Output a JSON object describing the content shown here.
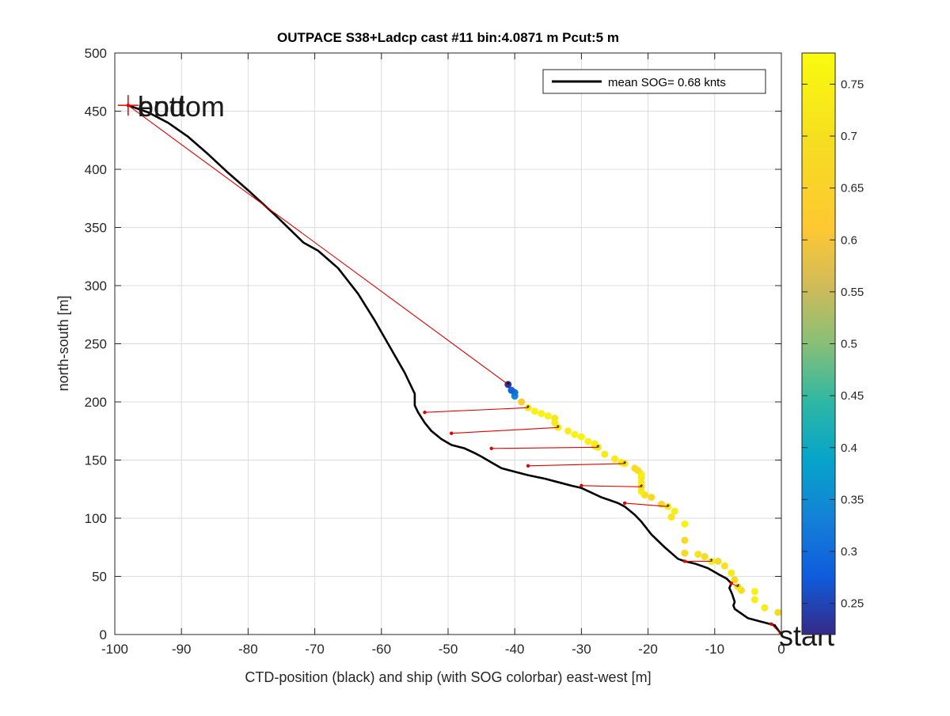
{
  "chart_data": {
    "type": "scatter",
    "title": "OUTPACE S38+Ladcp cast #11 bin:4.0871 m  Pcut:5 m",
    "xlabel": "CTD-position (black) and ship (with SOG colorbar) east-west [m]",
    "ylabel": "north-south [m]",
    "xlim": [
      -100,
      0
    ],
    "ylim": [
      0,
      500
    ],
    "xticks": [
      "-100",
      "-90",
      "-80",
      "-70",
      "-60",
      "-50",
      "-40",
      "-30",
      "-20",
      "-10",
      "0"
    ],
    "yticks": [
      "0",
      "50",
      "100",
      "150",
      "200",
      "250",
      "300",
      "350",
      "400",
      "450",
      "500"
    ],
    "grid": true,
    "legend": {
      "position": "top-right",
      "entries": [
        "mean SOG=  0.68 knts"
      ]
    },
    "annotations": [
      {
        "text": "bottom",
        "x": -98,
        "y": 455
      },
      {
        "text": "end",
        "x": -98,
        "y": 455
      },
      {
        "text": "start",
        "x": 0,
        "y": 0
      }
    ],
    "colorbar": {
      "range": [
        0.22,
        0.78
      ],
      "ticks": [
        "0.25",
        "0.3",
        "0.35",
        "0.4",
        "0.45",
        "0.5",
        "0.55",
        "0.6",
        "0.65",
        "0.7",
        "0.75"
      ]
    },
    "series": [
      {
        "name": "mean SOG=  0.68 knts",
        "kind": "line",
        "color": "#000000",
        "points": [
          [
            0,
            0
          ],
          [
            -1,
            8
          ],
          [
            -3,
            11
          ],
          [
            -5,
            14
          ],
          [
            -6,
            18
          ],
          [
            -7,
            22
          ],
          [
            -7.2,
            25
          ],
          [
            -7,
            28
          ],
          [
            -7.4,
            35
          ],
          [
            -7.8,
            40
          ],
          [
            -7.5,
            44
          ],
          [
            -8.2,
            48
          ],
          [
            -9.5,
            52
          ],
          [
            -11,
            57
          ],
          [
            -13,
            61
          ],
          [
            -14.5,
            63
          ],
          [
            -15.5,
            65
          ],
          [
            -17.5,
            75
          ],
          [
            -19.5,
            86
          ],
          [
            -21,
            97
          ],
          [
            -22,
            103
          ],
          [
            -23.5,
            110
          ],
          [
            -24.5,
            113
          ],
          [
            -27,
            118
          ],
          [
            -28.5,
            122
          ],
          [
            -30,
            126
          ],
          [
            -31.5,
            128
          ],
          [
            -33.5,
            131
          ],
          [
            -35.5,
            134
          ],
          [
            -38,
            137
          ],
          [
            -40,
            140
          ],
          [
            -42,
            143
          ],
          [
            -43.5,
            148
          ],
          [
            -45,
            153
          ],
          [
            -46,
            156
          ],
          [
            -47.5,
            160
          ],
          [
            -49.5,
            163
          ],
          [
            -51,
            168
          ],
          [
            -52.5,
            175
          ],
          [
            -53.5,
            182
          ],
          [
            -54.5,
            191
          ],
          [
            -55,
            197
          ],
          [
            -55,
            207
          ],
          [
            -56.5,
            225
          ],
          [
            -58.5,
            245
          ],
          [
            -61,
            270
          ],
          [
            -63.5,
            293
          ],
          [
            -66.5,
            315
          ],
          [
            -69.5,
            330
          ],
          [
            -71.7,
            337
          ],
          [
            -76,
            361
          ],
          [
            -80,
            382
          ],
          [
            -83,
            397
          ],
          [
            -86,
            413
          ],
          [
            -89,
            428
          ],
          [
            -92,
            440
          ],
          [
            -95,
            449
          ],
          [
            -98,
            455
          ]
        ]
      },
      {
        "name": "",
        "kind": "segments",
        "color": "#e00000",
        "segments": [
          [
            [
              0,
              0
            ],
            [
              -1.5,
              9
            ]
          ],
          [
            [
              -6.5,
              41
            ],
            [
              -7.5,
              44
            ]
          ],
          [
            [
              -10.5,
              63
            ],
            [
              -14.5,
              63
            ]
          ],
          [
            [
              -17,
              110
            ],
            [
              -23.5,
              113
            ]
          ],
          [
            [
              -21,
              127
            ],
            [
              -30,
              128
            ]
          ],
          [
            [
              -23.5,
              147
            ],
            [
              -38,
              145
            ]
          ],
          [
            [
              -27.5,
              161
            ],
            [
              -43.5,
              160
            ]
          ],
          [
            [
              -33.5,
              178
            ],
            [
              -49.5,
              173
            ]
          ],
          [
            [
              -38,
              195
            ],
            [
              -53.5,
              191
            ]
          ],
          [
            [
              -41,
              215
            ],
            [
              -98,
              455
            ]
          ]
        ]
      },
      {
        "name": "",
        "kind": "scatter-colored",
        "points": [
          [
            0,
            0,
            0.66
          ],
          [
            -0.5,
            19,
            0.69
          ],
          [
            -2.5,
            23,
            0.73
          ],
          [
            -4,
            30,
            0.74
          ],
          [
            -4,
            37,
            0.75
          ],
          [
            -6,
            38,
            0.69
          ],
          [
            -6.5,
            41,
            0.72
          ],
          [
            -7,
            47,
            0.67
          ],
          [
            -7.5,
            53,
            0.73
          ],
          [
            -8.5,
            59,
            0.71
          ],
          [
            -9.5,
            63,
            0.68
          ],
          [
            -10.5,
            63,
            0.74
          ],
          [
            -11.5,
            67,
            0.69
          ],
          [
            -12.5,
            69,
            0.71
          ],
          [
            -14.5,
            70,
            0.67
          ],
          [
            -14.5,
            81,
            0.68
          ],
          [
            -14.5,
            95,
            0.75
          ],
          [
            -16.5,
            101,
            0.72
          ],
          [
            -16,
            106,
            0.74
          ],
          [
            -17,
            110,
            0.74
          ],
          [
            -18,
            112,
            0.67
          ],
          [
            -19.5,
            118,
            0.69
          ],
          [
            -20.5,
            120,
            0.7
          ],
          [
            -21,
            123,
            0.74
          ],
          [
            -21,
            127,
            0.7
          ],
          [
            -21,
            131,
            0.73
          ],
          [
            -21,
            135,
            0.73
          ],
          [
            -21,
            138,
            0.74
          ],
          [
            -21.5,
            141,
            0.7
          ],
          [
            -22,
            143,
            0.69
          ],
          [
            -23.5,
            147,
            0.72
          ],
          [
            -24,
            148,
            0.73
          ],
          [
            -25,
            151,
            0.73
          ],
          [
            -26.5,
            155,
            0.73
          ],
          [
            -27.5,
            161,
            0.73
          ],
          [
            -28,
            162,
            0.69
          ],
          [
            -28,
            164,
            0.74
          ],
          [
            -29,
            166,
            0.75
          ],
          [
            -30,
            170,
            0.75
          ],
          [
            -31,
            172,
            0.75
          ],
          [
            -32,
            175,
            0.74
          ],
          [
            -33.5,
            178,
            0.74
          ],
          [
            -34,
            182,
            0.73
          ],
          [
            -34,
            186,
            0.72
          ],
          [
            -35,
            188,
            0.75
          ],
          [
            -36,
            190,
            0.75
          ],
          [
            -37,
            192,
            0.75
          ],
          [
            -38,
            195,
            0.73
          ],
          [
            -39,
            200,
            0.62
          ],
          [
            -40,
            205,
            0.35
          ],
          [
            -40,
            208,
            0.31
          ],
          [
            -40.5,
            210,
            0.29
          ],
          [
            -41,
            215,
            0.23
          ]
        ]
      }
    ]
  }
}
